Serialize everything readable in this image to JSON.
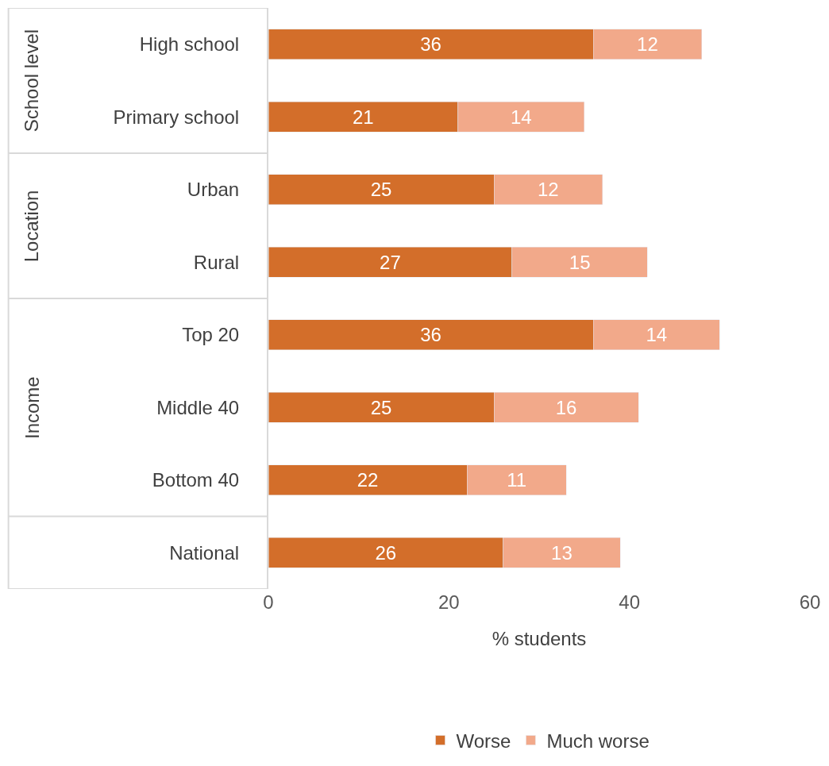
{
  "chart_data": {
    "type": "bar",
    "orientation": "horizontal",
    "stacked": true,
    "xlabel": "% students",
    "categories": [
      "High school",
      "Primary school",
      "Urban",
      "Rural",
      "Top 20",
      "Middle 40",
      "Bottom 40",
      "National"
    ],
    "series": [
      {
        "name": "Worse",
        "color": "#d36e2a",
        "values": [
          36,
          21,
          25,
          27,
          36,
          25,
          22,
          26
        ]
      },
      {
        "name": "Much worse",
        "color": "#f2a98a",
        "values": [
          12,
          14,
          12,
          15,
          14,
          16,
          11,
          13
        ]
      }
    ],
    "xlim": [
      0,
      60
    ],
    "xticks": [
      0,
      20,
      40,
      60
    ],
    "legend": "bottom",
    "data_labels": true,
    "annotations": [
      "School level",
      "Location",
      "Income"
    ]
  }
}
